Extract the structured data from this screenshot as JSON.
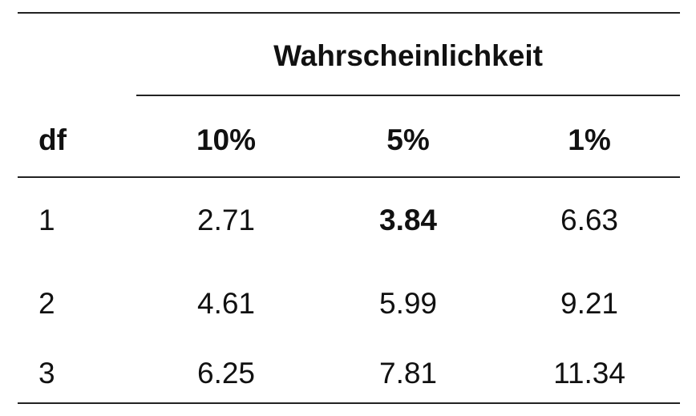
{
  "table": {
    "group_header": "Wahrscheinlichkeit",
    "columns": [
      "df",
      "10%",
      "5%",
      "1%"
    ],
    "rows": [
      [
        "1",
        "2.71",
        "3.84",
        "6.63"
      ],
      [
        "2",
        "4.61",
        "5.99",
        "9.21"
      ],
      [
        "3",
        "6.25",
        "7.81",
        "11.34"
      ]
    ]
  }
}
